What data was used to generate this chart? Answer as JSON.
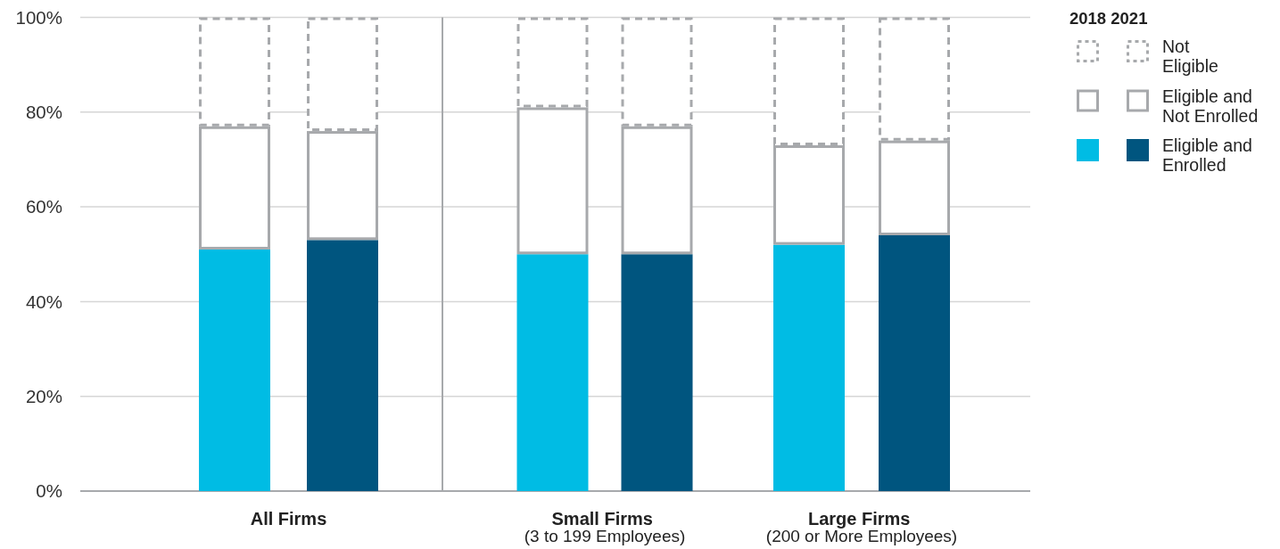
{
  "chart_data": [
    {
      "type": "bar",
      "stacked": true,
      "categories": [
        "All Firms",
        null
      ],
      "series": [
        {
          "colors": [
            "#00bce4",
            "#00557f"
          ],
          "values": [
            51,
            53
          ]
        },
        {
          "color": "#a7a9ac",
          "line_style": "solid",
          "values": [
            26,
            23
          ]
        },
        {
          "color": "#a7a9ac",
          "line_style": "dashed",
          "values": [
            23,
            24
          ]
        }
      ],
      "ylim": [
        0,
        100
      ],
      "yticks": [
        {
          "value": 0,
          "label": "0%"
        },
        {
          "value": 20,
          "label": "20%"
        },
        {
          "value": 40,
          "label": "40%"
        },
        {
          "value": 60,
          "label": "60%"
        },
        {
          "value": 80,
          "label": "80%"
        },
        {
          "value": 100,
          "label": "100%"
        }
      ],
      "grid": "y"
    },
    {
      "type": "bar",
      "stacked": true,
      "categories": [
        "Small Firms\n(3 to 199 Employees)",
        null
      ],
      "series": [
        {
          "colors": [
            "#00bce4",
            "#00557f"
          ],
          "values": [
            50,
            50
          ]
        },
        {
          "color": "#a7a9ac",
          "line_style": "solid",
          "values": [
            31,
            27
          ]
        },
        {
          "color": "#a7a9ac",
          "line_style": "dashed",
          "values": [
            19,
            23
          ]
        }
      ],
      "ylim": [
        0,
        100
      ],
      "yticks": [
        0,
        20,
        40,
        60,
        80,
        100
      ],
      "grid": "y",
      "tick_labels": "x"
    },
    {
      "type": "bar",
      "stacked": true,
      "categories": [
        "Large Firms\n(200 or More Employees)",
        null
      ],
      "series": [
        {
          "name": "Eligible and\nEnrolled",
          "colors": [
            "#00bce4",
            "#00557f"
          ],
          "values": [
            52,
            54
          ]
        },
        {
          "name": "Eligible and\nNot Enrolled",
          "color": "#a7a9ac",
          "line_style": "solid",
          "values": [
            21,
            20
          ]
        },
        {
          "name": "Not\nEligible",
          "color": "#a7a9ac",
          "line_style": "dashed",
          "values": [
            27,
            26
          ]
        }
      ],
      "ylim": [
        0,
        100
      ],
      "yticks": [
        0,
        20,
        40,
        60,
        80,
        100
      ],
      "grid": "y",
      "tick_labels": "x",
      "legend": "right",
      "legend_title": "2018 2021"
    }
  ]
}
